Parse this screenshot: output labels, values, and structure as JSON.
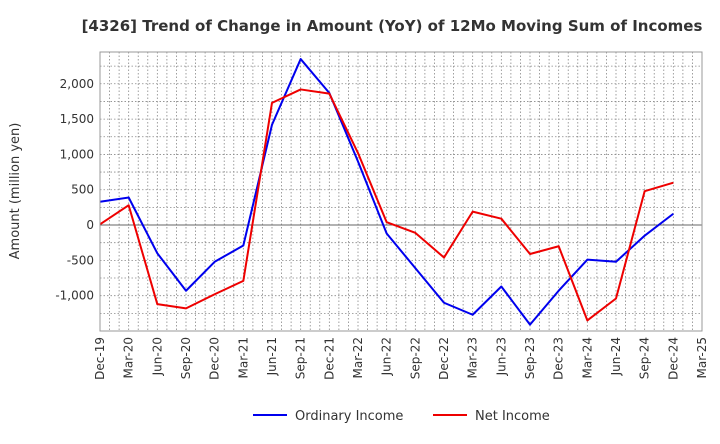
{
  "chart_data": {
    "type": "line",
    "title": "[4326]  Trend of Change in Amount (YoY) of 12Mo Moving Sum of Incomes",
    "xlabel": "",
    "ylabel": "Amount (million yen)",
    "ylim": [
      -1500,
      2450
    ],
    "yticks": [
      -1000,
      -500,
      0,
      500,
      1000,
      1500,
      2000
    ],
    "ytick_labels": [
      "-1,000",
      "-500",
      "0",
      "500",
      "1,000",
      "1,500",
      "2,000"
    ],
    "categories": [
      "Dec-19",
      "Mar-20",
      "Jun-20",
      "Sep-20",
      "Dec-20",
      "Mar-21",
      "Jun-21",
      "Sep-21",
      "Dec-21",
      "Mar-22",
      "Jun-22",
      "Sep-22",
      "Dec-22",
      "Mar-23",
      "Jun-23",
      "Sep-23",
      "Dec-23",
      "Mar-24",
      "Jun-24",
      "Sep-24",
      "Dec-24",
      "Mar-25"
    ],
    "grid": true,
    "legend_position": "bottom-center",
    "series": [
      {
        "name": "Ordinary Income",
        "color": "#0000ee",
        "values": [
          330,
          390,
          -400,
          -930,
          -520,
          -290,
          1420,
          2350,
          1870,
          900,
          -120,
          -610,
          -1100,
          -1270,
          -870,
          -1410,
          -930,
          -490,
          -520,
          -150,
          160,
          null
        ]
      },
      {
        "name": "Net Income",
        "color": "#ee0000",
        "values": [
          10,
          280,
          -1120,
          -1180,
          -980,
          -790,
          1730,
          1920,
          1860,
          1020,
          40,
          -110,
          -460,
          190,
          90,
          -410,
          -300,
          -1350,
          -1040,
          480,
          600,
          null
        ]
      }
    ]
  }
}
